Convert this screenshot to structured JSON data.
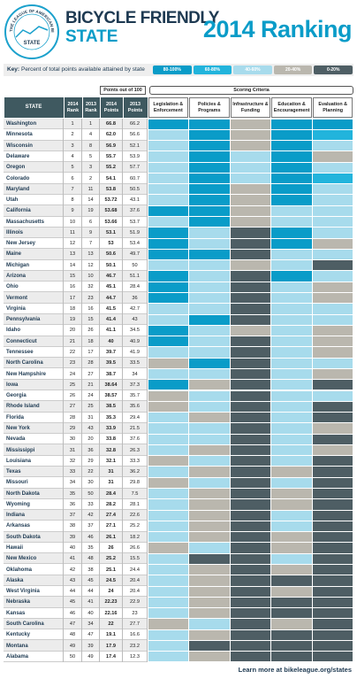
{
  "header": {
    "logo_text": "THE LEAGUE OF AMERICAN BICYCLISTS",
    "logo_center": "STATE",
    "title_line1": "BICYCLE FRIENDLY",
    "title_line2": "STATE",
    "ranking_title": "2014 Ranking"
  },
  "key": {
    "label": "Key:",
    "text": "Percent of total points available attained by state",
    "levels": [
      {
        "label": "80-100%",
        "color": "#0a9cc8"
      },
      {
        "label": "60-80%",
        "color": "#22b4dc"
      },
      {
        "label": "40-60%",
        "color": "#a7dbec"
      },
      {
        "label": "20-40%",
        "color": "#bab7ae"
      },
      {
        "label": "0-20%",
        "color": "#4e5e64"
      }
    ]
  },
  "table": {
    "group_points": "Points out of 100",
    "group_criteria": "Scoring Criteria",
    "columns": [
      "STATE",
      "2014 Rank",
      "2013 Rank",
      "2014 Points",
      "2013 Points",
      "Legislation & Enforcement",
      "Policies & Programs",
      "Infrastructure & Funding",
      "Education & Encouragement",
      "Evaluation & Planning"
    ],
    "rows": [
      [
        "Washington",
        "1",
        "1",
        "66.8",
        "66.2"
      ],
      [
        "Minnesota",
        "2",
        "4",
        "62.0",
        "56.6"
      ],
      [
        "Wisconsin",
        "3",
        "8",
        "56.9",
        "52.1"
      ],
      [
        "Delaware",
        "4",
        "5",
        "55.7",
        "53.9"
      ],
      [
        "Oregon",
        "5",
        "3",
        "55.2",
        "57.7"
      ],
      [
        "Colorado",
        "6",
        "2",
        "54.1",
        "60.7"
      ],
      [
        "Maryland",
        "7",
        "11",
        "53.8",
        "50.5"
      ],
      [
        "Utah",
        "8",
        "14",
        "53.72",
        "43.1"
      ],
      [
        "California",
        "9",
        "19",
        "53.68",
        "37.6"
      ],
      [
        "Massachusetts",
        "10",
        "6",
        "53.66",
        "53.7"
      ],
      [
        "Illinois",
        "11",
        "9",
        "53.1",
        "51.9"
      ],
      [
        "New Jersey",
        "12",
        "7",
        "53",
        "53.4"
      ],
      [
        "Maine",
        "13",
        "13",
        "50.6",
        "49.7"
      ],
      [
        "Michigan",
        "14",
        "12",
        "50.1",
        "50"
      ],
      [
        "Arizona",
        "15",
        "10",
        "46.7",
        "51.1"
      ],
      [
        "Ohio",
        "16",
        "32",
        "45.1",
        "28.4"
      ],
      [
        "Vermont",
        "17",
        "23",
        "44.7",
        "36"
      ],
      [
        "Virginia",
        "18",
        "16",
        "41.5",
        "42.7"
      ],
      [
        "Pennsylvania",
        "19",
        "15",
        "41.4",
        "43"
      ],
      [
        "Idaho",
        "20",
        "26",
        "41.1",
        "34.5"
      ],
      [
        "Connecticut",
        "21",
        "18",
        "40",
        "40.9"
      ],
      [
        "Tennessee",
        "22",
        "17",
        "39.7",
        "41.9"
      ],
      [
        "North Carolina",
        "23",
        "28",
        "39.5",
        "33.5"
      ],
      [
        "New Hampshire",
        "24",
        "27",
        "38.7",
        "34"
      ],
      [
        "Iowa",
        "25",
        "21",
        "38.64",
        "37.3"
      ],
      [
        "Georgia",
        "26",
        "24",
        "38.57",
        "35.7"
      ],
      [
        "Rhode Island",
        "27",
        "25",
        "38.5",
        "35.6"
      ],
      [
        "Florida",
        "28",
        "31",
        "35.3",
        "29.4"
      ],
      [
        "New York",
        "29",
        "43",
        "33.9",
        "21.5"
      ],
      [
        "Nevada",
        "30",
        "20",
        "33.8",
        "37.6"
      ],
      [
        "Mississippi",
        "31",
        "36",
        "32.8",
        "26.3"
      ],
      [
        "Louisiana",
        "32",
        "29",
        "32.1",
        "33.3"
      ],
      [
        "Texas",
        "33",
        "22",
        "31",
        "36.2"
      ],
      [
        "Missouri",
        "34",
        "30",
        "31",
        "29.8"
      ],
      [
        "North Dakota",
        "35",
        "50",
        "28.4",
        "7.5"
      ],
      [
        "Wyoming",
        "36",
        "33",
        "28.2",
        "28.1"
      ],
      [
        "Indiana",
        "37",
        "42",
        "27.4",
        "22.6"
      ],
      [
        "Arkansas",
        "38",
        "37",
        "27.1",
        "25.2"
      ],
      [
        "South Dakota",
        "39",
        "46",
        "26.1",
        "18.2"
      ],
      [
        "Hawaii",
        "40",
        "35",
        "26",
        "26.6"
      ],
      [
        "New Mexico",
        "41",
        "48",
        "25.2",
        "15.5"
      ],
      [
        "Oklahoma",
        "42",
        "38",
        "25.1",
        "24.4"
      ],
      [
        "Alaska",
        "43",
        "45",
        "24.5",
        "20.4"
      ],
      [
        "West Virginia",
        "44",
        "44",
        "24",
        "20.4"
      ],
      [
        "Nebraska",
        "45",
        "41",
        "22.23",
        "22.9"
      ],
      [
        "Kansas",
        "46",
        "40",
        "22.16",
        "23"
      ],
      [
        "South Carolina",
        "47",
        "34",
        "22",
        "27.7"
      ],
      [
        "Kentucky",
        "48",
        "47",
        "19.1",
        "16.6"
      ],
      [
        "Montana",
        "49",
        "39",
        "17.9",
        "23.2"
      ],
      [
        "Alabama",
        "50",
        "49",
        "17.4",
        "12.3"
      ]
    ],
    "criteria": [
      [
        "#0a9cc8",
        "#0a9cc8",
        "#bab7ae",
        "#0a9cc8",
        "#0a9cc8"
      ],
      [
        "#a7dbec",
        "#0a9cc8",
        "#bab7ae",
        "#0a9cc8",
        "#22b4dc"
      ],
      [
        "#a7dbec",
        "#0a9cc8",
        "#bab7ae",
        "#0a9cc8",
        "#a7dbec"
      ],
      [
        "#a7dbec",
        "#0a9cc8",
        "#a7dbec",
        "#0a9cc8",
        "#bab7ae"
      ],
      [
        "#a7dbec",
        "#0a9cc8",
        "#a7dbec",
        "#0a9cc8",
        "#a7dbec"
      ],
      [
        "#a7dbec",
        "#0a9cc8",
        "#a7dbec",
        "#0a9cc8",
        "#22b4dc"
      ],
      [
        "#a7dbec",
        "#0a9cc8",
        "#bab7ae",
        "#0a9cc8",
        "#a7dbec"
      ],
      [
        "#a7dbec",
        "#0a9cc8",
        "#bab7ae",
        "#0a9cc8",
        "#a7dbec"
      ],
      [
        "#0a9cc8",
        "#0a9cc8",
        "#bab7ae",
        "#a7dbec",
        "#a7dbec"
      ],
      [
        "#a7dbec",
        "#0a9cc8",
        "#bab7ae",
        "#a7dbec",
        "#a7dbec"
      ],
      [
        "#0a9cc8",
        "#a7dbec",
        "#4e5e64",
        "#0a9cc8",
        "#a7dbec"
      ],
      [
        "#0a9cc8",
        "#a7dbec",
        "#4e5e64",
        "#0a9cc8",
        "#bab7ae"
      ],
      [
        "#0a9cc8",
        "#0a9cc8",
        "#4e5e64",
        "#a7dbec",
        "#a7dbec"
      ],
      [
        "#a7dbec",
        "#a7dbec",
        "#bab7ae",
        "#a7dbec",
        "#4e5e64"
      ],
      [
        "#0a9cc8",
        "#a7dbec",
        "#4e5e64",
        "#0a9cc8",
        "#a7dbec"
      ],
      [
        "#0a9cc8",
        "#a7dbec",
        "#4e5e64",
        "#a7dbec",
        "#bab7ae"
      ],
      [
        "#0a9cc8",
        "#a7dbec",
        "#4e5e64",
        "#a7dbec",
        "#bab7ae"
      ],
      [
        "#a7dbec",
        "#a7dbec",
        "#4e5e64",
        "#a7dbec",
        "#a7dbec"
      ],
      [
        "#a7dbec",
        "#0a9cc8",
        "#4e5e64",
        "#a7dbec",
        "#a7dbec"
      ],
      [
        "#0a9cc8",
        "#a7dbec",
        "#bab7ae",
        "#a7dbec",
        "#bab7ae"
      ],
      [
        "#0a9cc8",
        "#a7dbec",
        "#4e5e64",
        "#a7dbec",
        "#bab7ae"
      ],
      [
        "#a7dbec",
        "#a7dbec",
        "#4e5e64",
        "#a7dbec",
        "#bab7ae"
      ],
      [
        "#bab7ae",
        "#0a9cc8",
        "#4e5e64",
        "#a7dbec",
        "#a7dbec"
      ],
      [
        "#a7dbec",
        "#a7dbec",
        "#4e5e64",
        "#a7dbec",
        "#bab7ae"
      ],
      [
        "#0a9cc8",
        "#bab7ae",
        "#4e5e64",
        "#a7dbec",
        "#4e5e64"
      ],
      [
        "#bab7ae",
        "#a7dbec",
        "#4e5e64",
        "#a7dbec",
        "#a7dbec"
      ],
      [
        "#bab7ae",
        "#a7dbec",
        "#4e5e64",
        "#a7dbec",
        "#4e5e64"
      ],
      [
        "#a7dbec",
        "#bab7ae",
        "#4e5e64",
        "#a7dbec",
        "#4e5e64"
      ],
      [
        "#a7dbec",
        "#a7dbec",
        "#4e5e64",
        "#a7dbec",
        "#bab7ae"
      ],
      [
        "#a7dbec",
        "#a7dbec",
        "#4e5e64",
        "#a7dbec",
        "#4e5e64"
      ],
      [
        "#a7dbec",
        "#bab7ae",
        "#4e5e64",
        "#a7dbec",
        "#bab7ae"
      ],
      [
        "#bab7ae",
        "#a7dbec",
        "#4e5e64",
        "#a7dbec",
        "#4e5e64"
      ],
      [
        "#a7dbec",
        "#bab7ae",
        "#4e5e64",
        "#bab7ae",
        "#4e5e64"
      ],
      [
        "#bab7ae",
        "#a7dbec",
        "#4e5e64",
        "#a7dbec",
        "#4e5e64"
      ],
      [
        "#a7dbec",
        "#bab7ae",
        "#4e5e64",
        "#bab7ae",
        "#4e5e64"
      ],
      [
        "#a7dbec",
        "#bab7ae",
        "#4e5e64",
        "#bab7ae",
        "#4e5e64"
      ],
      [
        "#a7dbec",
        "#bab7ae",
        "#4e5e64",
        "#a7dbec",
        "#4e5e64"
      ],
      [
        "#a7dbec",
        "#bab7ae",
        "#4e5e64",
        "#a7dbec",
        "#4e5e64"
      ],
      [
        "#a7dbec",
        "#bab7ae",
        "#4e5e64",
        "#bab7ae",
        "#4e5e64"
      ],
      [
        "#bab7ae",
        "#a7dbec",
        "#4e5e64",
        "#bab7ae",
        "#4e5e64"
      ],
      [
        "#a7dbec",
        "#4e5e64",
        "#4e5e64",
        "#a7dbec",
        "#4e5e64"
      ],
      [
        "#a7dbec",
        "#bab7ae",
        "#4e5e64",
        "#bab7ae",
        "#4e5e64"
      ],
      [
        "#a7dbec",
        "#bab7ae",
        "#4e5e64",
        "#4e5e64",
        "#4e5e64"
      ],
      [
        "#a7dbec",
        "#bab7ae",
        "#4e5e64",
        "#bab7ae",
        "#4e5e64"
      ],
      [
        "#a7dbec",
        "#bab7ae",
        "#4e5e64",
        "#4e5e64",
        "#4e5e64"
      ],
      [
        "#a7dbec",
        "#bab7ae",
        "#4e5e64",
        "#4e5e64",
        "#4e5e64"
      ],
      [
        "#bab7ae",
        "#a7dbec",
        "#4e5e64",
        "#bab7ae",
        "#4e5e64"
      ],
      [
        "#a7dbec",
        "#bab7ae",
        "#4e5e64",
        "#4e5e64",
        "#4e5e64"
      ],
      [
        "#a7dbec",
        "#4e5e64",
        "#4e5e64",
        "#4e5e64",
        "#4e5e64"
      ],
      [
        "#a7dbec",
        "#bab7ae",
        "#4e5e64",
        "#4e5e64",
        "#4e5e64"
      ]
    ]
  },
  "footer": {
    "text": "Learn more at bikeleague.org/states"
  }
}
